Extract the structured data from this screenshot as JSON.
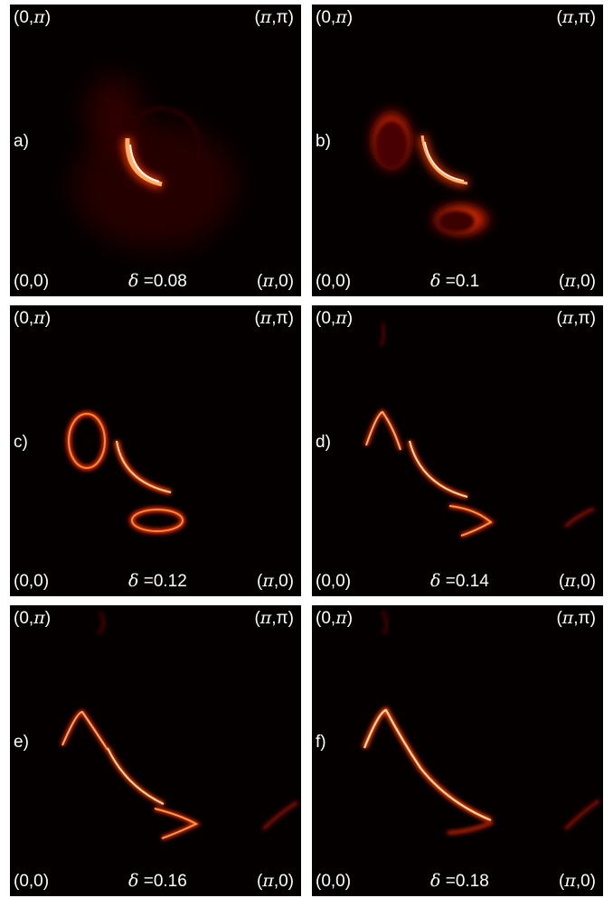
{
  "corner_labels": {
    "top_left": {
      "open": "(0,",
      "sym": "π",
      "close": ")"
    },
    "top_right": {
      "open": "(",
      "sym": "π",
      "close": ",π)"
    },
    "bottom_left": "(0,0)",
    "bottom_right": {
      "open": "(",
      "sym": "π",
      "close": ",0)"
    }
  },
  "delta_symbol": "δ",
  "colors": {
    "background": "#050000",
    "low": "#5a0500",
    "mid": "#d42a00",
    "high": "#ffffff"
  },
  "panels": [
    {
      "id": "a",
      "tag": "a)",
      "delta_text": "=0.08"
    },
    {
      "id": "b",
      "tag": "b)",
      "delta_text": "=0.1"
    },
    {
      "id": "c",
      "tag": "c)",
      "delta_text": "=0.12"
    },
    {
      "id": "d",
      "tag": "d)",
      "delta_text": "=0.14"
    },
    {
      "id": "e",
      "tag": "e)",
      "delta_text": "=0.16"
    },
    {
      "id": "f",
      "tag": "f)",
      "delta_text": "=0.18"
    }
  ]
}
